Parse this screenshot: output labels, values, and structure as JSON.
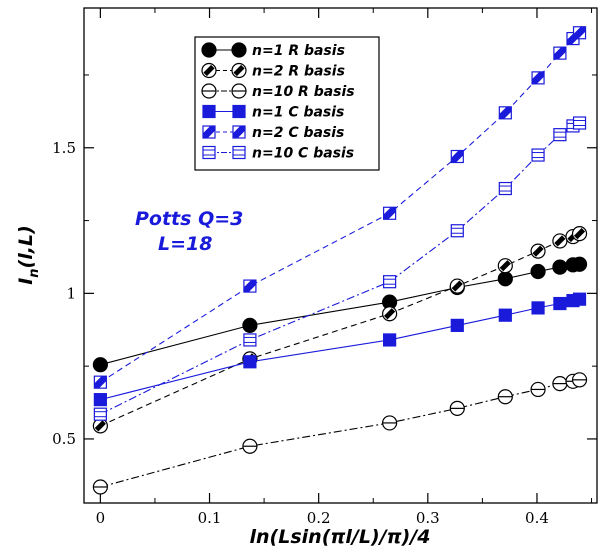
{
  "chart_data": {
    "type": "line",
    "title": "",
    "xlabel": "ln(Lsin(πl/L)/π)/4",
    "ylabel_main": "I",
    "ylabel_sub": "n",
    "ylabel_rest": "(l,L)",
    "xlim": [
      -0.015,
      0.455
    ],
    "ylim": [
      0.28,
      1.98
    ],
    "x_ticks": [
      {
        "v": 0,
        "label": "0"
      },
      {
        "v": 0.1,
        "label": "0.1"
      },
      {
        "v": 0.2,
        "label": "0.2"
      },
      {
        "v": 0.3,
        "label": "0.3"
      },
      {
        "v": 0.4,
        "label": "0.4"
      }
    ],
    "y_ticks": [
      {
        "v": 0.5,
        "label": "0.5"
      },
      {
        "v": 1,
        "label": "1"
      },
      {
        "v": 1.5,
        "label": "1.5"
      }
    ],
    "x_minor_ticks": [
      0.05,
      0.15,
      0.25,
      0.35,
      0.45
    ],
    "y_minor_ticks": [
      0.75,
      1.25,
      1.75
    ],
    "grid": false,
    "legend_position": "top-center",
    "annotations": [
      "Potts Q=3",
      "L=18"
    ],
    "colors": {
      "black": "#000000",
      "blue": "#1a1adb"
    },
    "series": [
      {
        "name": "n=1 R basis",
        "color": "#000000",
        "marker": "circle-filled",
        "line": "solid",
        "x": [
          0,
          0.137,
          0.265,
          0.327,
          0.371,
          0.401,
          0.421,
          0.433,
          0.439
        ],
        "y": [
          0.755,
          0.89,
          0.97,
          1.02,
          1.05,
          1.075,
          1.09,
          1.098,
          1.1
        ]
      },
      {
        "name": "n=2 R basis",
        "color": "#000000",
        "marker": "circle-slash",
        "line": "dashed",
        "x": [
          0,
          0.137,
          0.265,
          0.327,
          0.371,
          0.401,
          0.421,
          0.433,
          0.439
        ],
        "y": [
          0.545,
          0.775,
          0.93,
          1.025,
          1.095,
          1.145,
          1.18,
          1.195,
          1.205
        ]
      },
      {
        "name": "n=10 R basis",
        "color": "#000000",
        "marker": "circle-hline",
        "line": "dashdot",
        "x": [
          0,
          0.137,
          0.265,
          0.327,
          0.371,
          0.401,
          0.421,
          0.433,
          0.439
        ],
        "y": [
          0.335,
          0.475,
          0.555,
          0.605,
          0.645,
          0.67,
          0.69,
          0.698,
          0.703
        ]
      },
      {
        "name": "n=1 C basis",
        "color": "#1a1adb",
        "marker": "square-filled",
        "line": "solid",
        "x": [
          0,
          0.137,
          0.265,
          0.327,
          0.371,
          0.401,
          0.421,
          0.433,
          0.439
        ],
        "y": [
          0.635,
          0.765,
          0.84,
          0.89,
          0.925,
          0.95,
          0.965,
          0.975,
          0.98
        ]
      },
      {
        "name": "n=2 C basis",
        "color": "#1a1adb",
        "marker": "square-slash",
        "line": "dashed",
        "x": [
          0,
          0.137,
          0.265,
          0.327,
          0.371,
          0.401,
          0.421,
          0.433,
          0.439
        ],
        "y": [
          0.695,
          1.025,
          1.275,
          1.47,
          1.62,
          1.74,
          1.825,
          1.875,
          1.895
        ]
      },
      {
        "name": "n=10 C basis",
        "color": "#1a1adb",
        "marker": "square-hline",
        "line": "dashdot",
        "x": [
          0,
          0.137,
          0.265,
          0.327,
          0.371,
          0.401,
          0.421,
          0.433,
          0.439
        ],
        "y": [
          0.585,
          0.84,
          1.04,
          1.215,
          1.36,
          1.475,
          1.545,
          1.575,
          1.585
        ]
      }
    ]
  }
}
